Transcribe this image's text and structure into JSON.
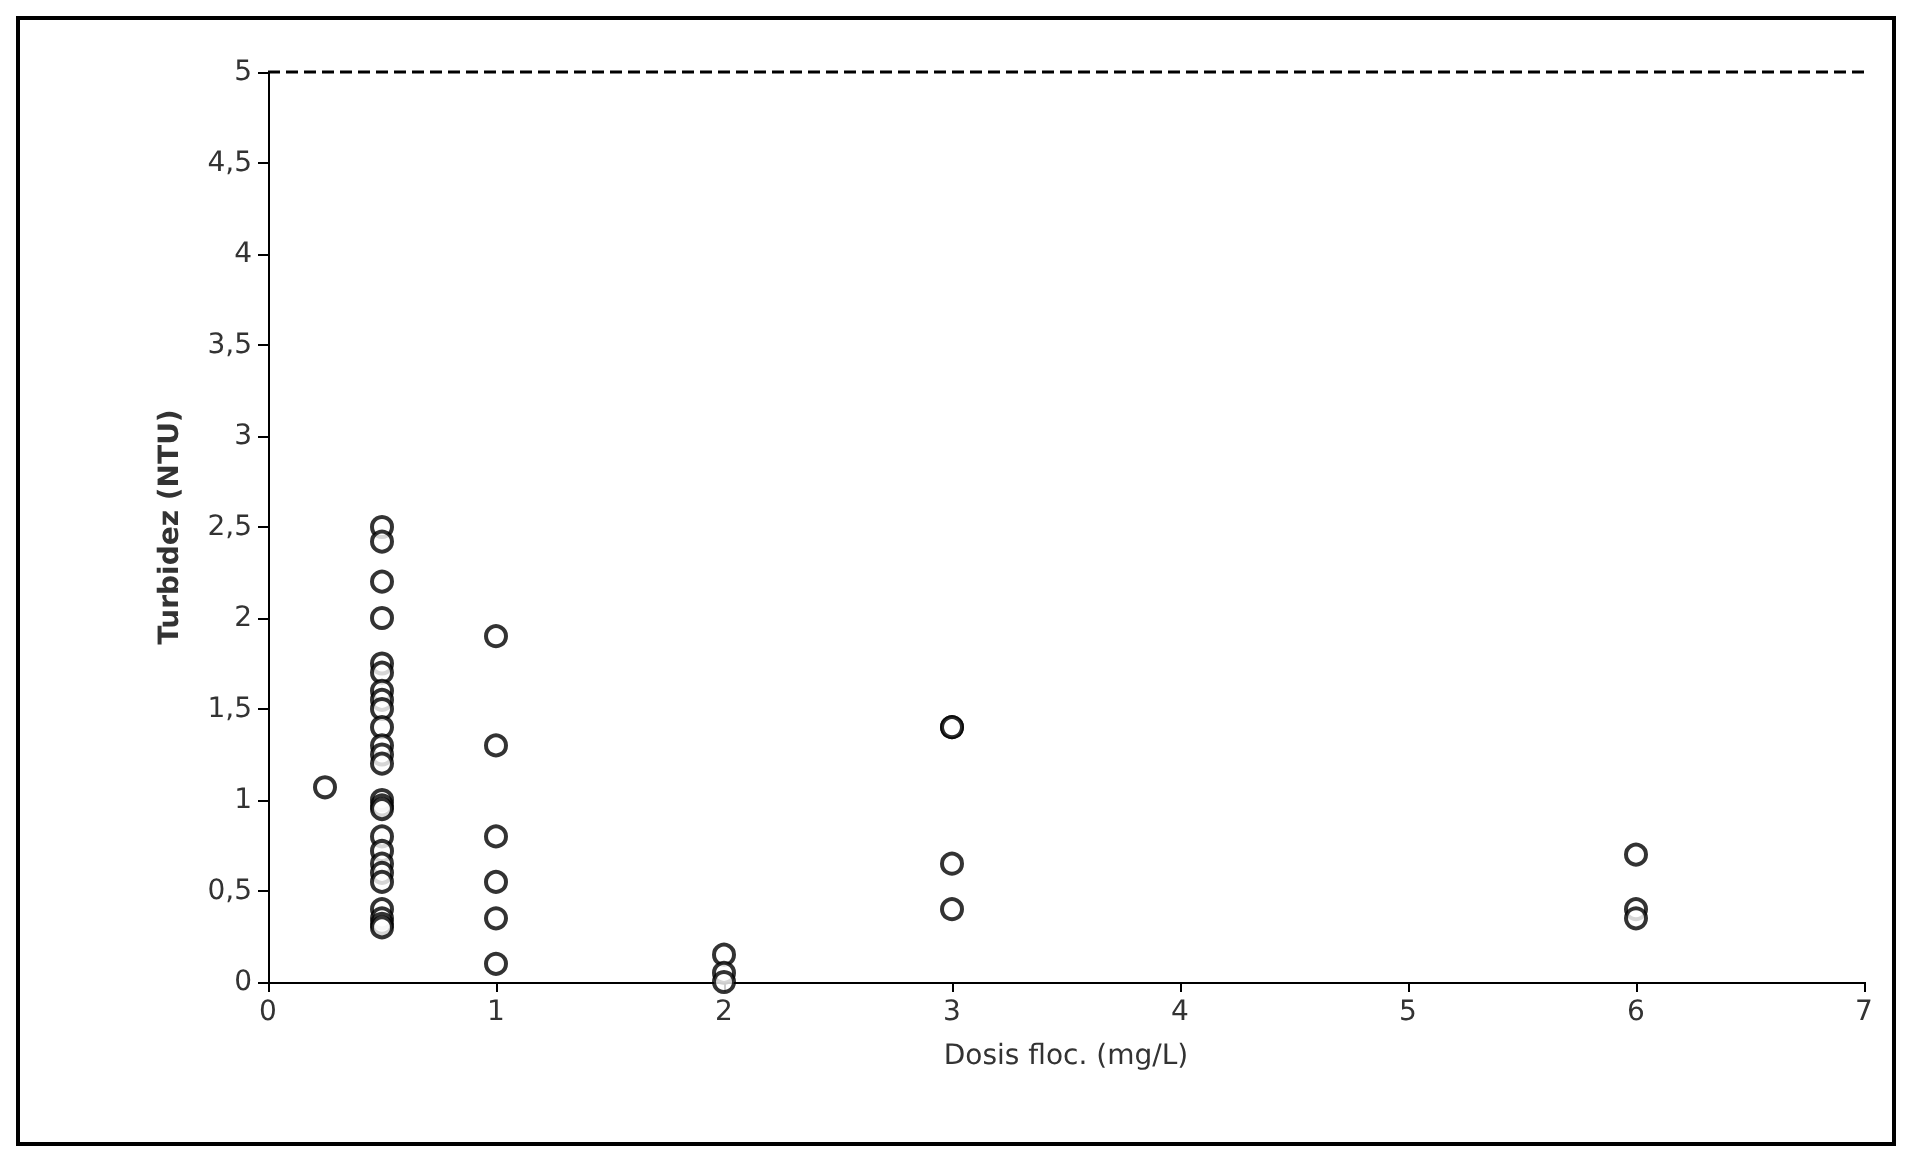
{
  "chart_data": {
    "type": "scatter",
    "xlabel": "Dosis floc. (mg/L)",
    "ylabel": "Turbidez (NTU)",
    "x": [
      0.25,
      0.5,
      0.5,
      0.5,
      0.5,
      0.5,
      0.5,
      0.5,
      0.5,
      0.5,
      0.5,
      0.5,
      0.5,
      0.5,
      0.5,
      0.5,
      0.5,
      0.5,
      0.5,
      0.5,
      0.5,
      0.5,
      0.5,
      0.5,
      0.5,
      0.5,
      1,
      1,
      1,
      1,
      1,
      1,
      2,
      2,
      2,
      3,
      3,
      3,
      3,
      6,
      6,
      6
    ],
    "series": [
      {
        "color": "#000000",
        "values": [
          1.07,
          2.5,
          2.42,
          2.2,
          2.0,
          1.75,
          1.7,
          1.6,
          1.55,
          1.5,
          1.4,
          1.3,
          1.25,
          1.2,
          1.0,
          0.97,
          0.95,
          0.8,
          0.72,
          0.65,
          0.6,
          0.55,
          0.4,
          0.35,
          0.32,
          0.3,
          1.9,
          1.3,
          0.8,
          0.55,
          0.35,
          0.1,
          0.15,
          0.05,
          0,
          1.4,
          1.4,
          0.65,
          0.4,
          0.7,
          0.4,
          0.35
        ]
      }
    ],
    "xlim": [
      0,
      7
    ],
    "xticks": [
      0,
      1,
      2,
      3,
      4,
      5,
      6,
      7
    ],
    "ylim": [
      0,
      5
    ],
    "yticks": [
      0,
      {
        "value": 0.5,
        "label": "0,5"
      },
      1,
      {
        "value": 1.5,
        "label": "1,5"
      },
      2,
      {
        "value": 2.5,
        "label": "2,5"
      },
      3,
      {
        "value": 3.5,
        "label": "3,5"
      },
      4,
      {
        "value": 4.5,
        "label": "4,5"
      },
      5
    ],
    "ref_lines": [
      {
        "axis": "y",
        "value": 5,
        "color": "#000000",
        "line_style": "dashed"
      }
    ],
    "grid": false,
    "marker": "circle"
  }
}
